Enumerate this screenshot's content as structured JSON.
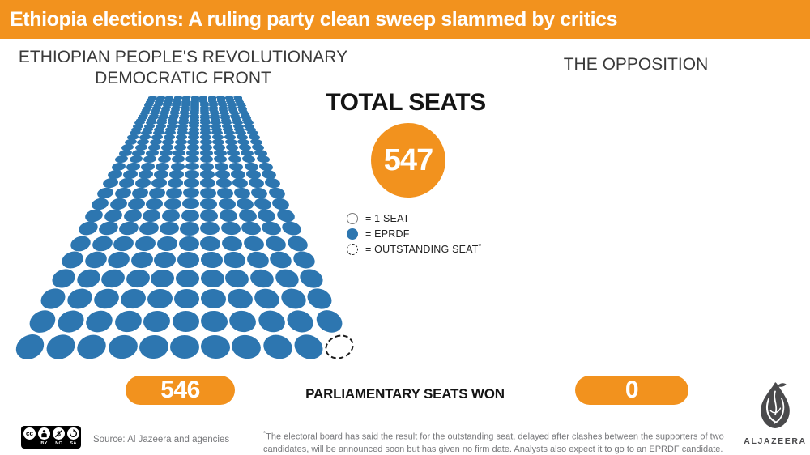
{
  "header": {
    "title": "Ethiopia elections: A ruling party clean sweep slammed by critics",
    "bg_color": "#F2921E"
  },
  "colors": {
    "accent_orange": "#F2921E",
    "eprdf_blue": "#2D76B0",
    "text_dark": "#141414",
    "text_gray": "#77787B"
  },
  "left_party": {
    "title": "ETHIOPIAN PEOPLE'S REVOLUTIONARY DEMOCRATIC FRONT",
    "seats_won": "546"
  },
  "right_party": {
    "title": "THE OPPOSITION",
    "seats_won": "0"
  },
  "total": {
    "label": "TOTAL SEATS",
    "value": "547"
  },
  "legend": {
    "items": [
      {
        "icon": "single-seat-circle",
        "label": "= 1 SEAT",
        "suffix": ""
      },
      {
        "icon": "eprdf-dot",
        "label": "= EPRDF",
        "suffix": ""
      },
      {
        "icon": "outstanding-seat-dashed-circle",
        "label": "= OUTSTANDING SEAT",
        "suffix": "*"
      }
    ]
  },
  "seat_grid": {
    "columns": 11,
    "total_seats": 547,
    "eprdf_seats": 546,
    "outstanding_seats": 1,
    "dot_color": "#2D76B0"
  },
  "main": {
    "seats_won_label": "PARLIAMENTARY SEATS WON"
  },
  "chart_data": {
    "type": "pictogram",
    "title": "TOTAL SEATS",
    "unit_note": "1 circle = 1 seat",
    "total_seats": 547,
    "categories": [
      "Ethiopian People's Revolutionary Democratic Front (EPRDF)",
      "The Opposition"
    ],
    "values": [
      546,
      0
    ],
    "outstanding_seats": 1,
    "value_label": "PARLIAMENTARY SEATS WON",
    "legend": [
      "1 SEAT",
      "EPRDF",
      "OUTSTANDING SEAT *"
    ]
  },
  "footer": {
    "license": {
      "cc_glyph": "cc",
      "labels": [
        "BY",
        "NC",
        "SA"
      ]
    },
    "source": "Source: Al Jazeera and agencies",
    "footnote_marker": "*",
    "footnote": "The electoral board has said the result for the outstanding seat, delayed after clashes between the supporters of two candidates, will be announced soon but has given no firm date. Analysts also expect it to go to an EPRDF candidate.",
    "brand": "ALJAZEERA"
  }
}
